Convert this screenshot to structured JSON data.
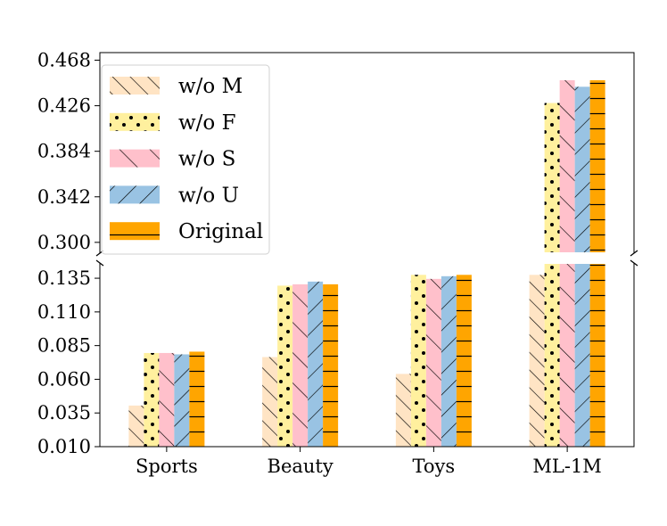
{
  "chart_data": {
    "type": "bar",
    "title": "",
    "xlabel": "",
    "ylabel": "",
    "categories": [
      "Sports",
      "Beauty",
      "Toys",
      "ML-1M"
    ],
    "series": [
      {
        "name": "w/o M",
        "values": [
          0.0405,
          0.0765,
          0.064,
          0.1375
        ],
        "color": "#ffe4c4",
        "pattern": "diag-forward-dense"
      },
      {
        "name": "w/o F",
        "values": [
          0.0795,
          0.1295,
          0.1375,
          0.4285
        ],
        "color": "#fff09e",
        "pattern": "dots"
      },
      {
        "name": "w/o S",
        "values": [
          0.0795,
          0.1305,
          0.1345,
          0.4495
        ],
        "color": "#ffc0cb",
        "pattern": "diag-forward-sparse"
      },
      {
        "name": "w/o U",
        "values": [
          0.0785,
          0.1325,
          0.1365,
          0.4435
        ],
        "color": "#99c3e3",
        "pattern": "diag-back"
      },
      {
        "name": "Original",
        "values": [
          0.0805,
          0.1305,
          0.1375,
          0.4495
        ],
        "color": "#ffa500",
        "pattern": "horizontal"
      }
    ],
    "axes": {
      "top": {
        "ylim": [
          0.29,
          0.475
        ],
        "ticks": [
          "0.300",
          "0.342",
          "0.384",
          "0.426",
          "0.468"
        ]
      },
      "bottom": {
        "ylim": [
          0.01,
          0.1463
        ],
        "ticks": [
          "0.010",
          "0.035",
          "0.060",
          "0.085",
          "0.110",
          "0.135"
        ]
      }
    },
    "broken_axis": true,
    "legend_position": "upper-left",
    "grid": false
  }
}
